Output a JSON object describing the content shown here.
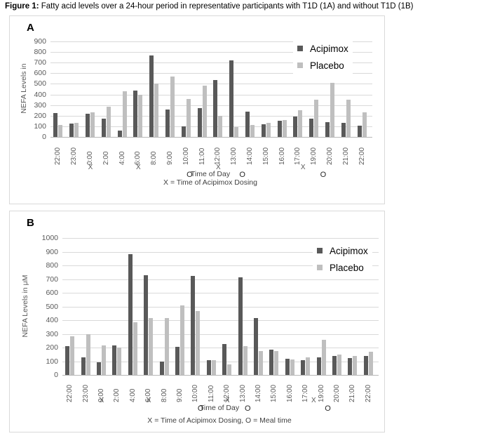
{
  "figure": {
    "title_label": "Figure 1:",
    "title_text": " Fatty acid levels over a 24-hour period in representative participants with T1D (1A) and without T1D (1B)"
  },
  "colors": {
    "acipimox_bar": "#595959",
    "placebo_bar": "#bfbfbf",
    "gridline": "#d9d9d9",
    "axis_line": "#b7b7b7",
    "tick_text": "#595959",
    "marker_text": "#262626"
  },
  "chart_data": [
    {
      "id": "A",
      "panel_label": "A",
      "type": "bar",
      "ylabel": "NEFA Levels in",
      "xlabel": "Time of Day",
      "footnote": "X = Time of Acipimox Dosing",
      "ylim": [
        0,
        900
      ],
      "ytick_step": 100,
      "grid": true,
      "legend_position": "top-right",
      "categories": [
        "22:00",
        "23:00",
        "0:00",
        "2:00",
        "4:00",
        "6:00",
        "8:00",
        "9:00",
        "10:00",
        "11:00",
        "12:00",
        "13:00",
        "14:00",
        "15:00",
        "16:00",
        "17:00",
        "19:00",
        "20:00",
        "21:00",
        "22:00"
      ],
      "series": [
        {
          "name": "Acipimox",
          "values": [
            225,
            125,
            220,
            170,
            60,
            435,
            770,
            260,
            100,
            270,
            535,
            720,
            240,
            120,
            155,
            195,
            175,
            140,
            130,
            105
          ]
        },
        {
          "name": "Placebo",
          "values": [
            110,
            130,
            230,
            285,
            430,
            400,
            505,
            570,
            360,
            485,
            200,
            95,
            110,
            130,
            160,
            250,
            350,
            510,
            350,
            230
          ]
        }
      ],
      "dose_marker": "X",
      "meal_marker": "O",
      "dose_times": [
        "0:00",
        "6:00",
        "12:00",
        "17:00"
      ],
      "meal_times": [
        "10:00",
        "13:00",
        "19:00"
      ],
      "dose_marker_slots": [
        2,
        5,
        10,
        15.3
      ],
      "meal_marker_slots": [
        8.2,
        11.5,
        16.56
      ]
    },
    {
      "id": "B",
      "panel_label": "B",
      "type": "bar",
      "ylabel": "NEFA Levels in μM",
      "xlabel": "Time of Day",
      "footnote": "X = Time of Acipimox Dosing, O = Meal time",
      "ylim": [
        0,
        1000
      ],
      "ytick_step": 100,
      "grid": true,
      "legend_position": "top-right",
      "categories": [
        "22:00",
        "23:00",
        "0:00",
        "2:00",
        "4:00",
        "6:00",
        "8:00",
        "9:00",
        "10:00",
        "11:00",
        "12:00",
        "13:00",
        "14:00",
        "15:00",
        "16:00",
        "17:00",
        "19:00",
        "20:00",
        "21:00",
        "22:00"
      ],
      "series": [
        {
          "name": "Acipimox",
          "values": [
            210,
            130,
            90,
            215,
            880,
            730,
            95,
            205,
            725,
            110,
            225,
            715,
            415,
            185,
            120,
            110,
            130,
            140,
            125,
            140
          ]
        },
        {
          "name": "Placebo",
          "values": [
            280,
            295,
            215,
            200,
            385,
            415,
            415,
            510,
            465,
            110,
            75,
            210,
            175,
            175,
            115,
            130,
            255,
            150,
            140,
            170
          ]
        }
      ],
      "dose_marker": "X",
      "meal_marker": "O",
      "dose_times": [
        "0:00",
        "6:00",
        "12:00",
        "17:00"
      ],
      "meal_times": [
        "10:00",
        "13:00",
        "19:00"
      ],
      "dose_marker_slots": [
        2,
        5,
        10,
        15.5
      ],
      "meal_marker_slots": [
        8.3,
        11.3,
        16.4
      ]
    }
  ]
}
